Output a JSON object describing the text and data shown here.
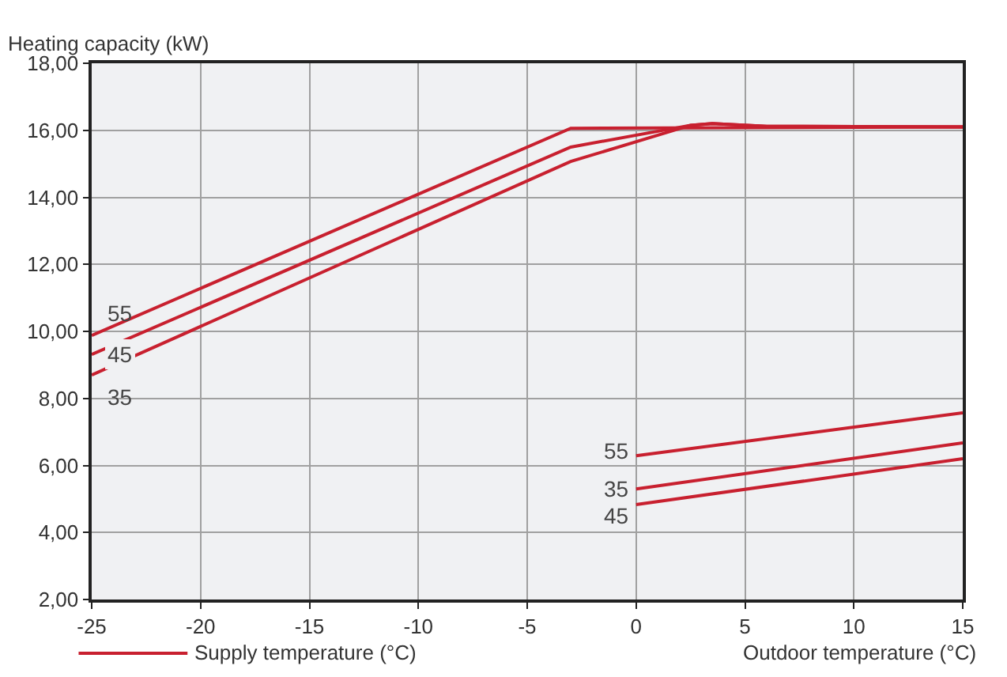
{
  "chart_data": {
    "type": "line",
    "ylabel": "Heating capacity (kW)",
    "xlabel": "Outdoor temperature (°C)",
    "legend_title": "Supply temperature (°C)",
    "xlim": [
      -25,
      15
    ],
    "xticks": [
      -25,
      -20,
      -15,
      -10,
      -5,
      0,
      5,
      10,
      15
    ],
    "ylim": [
      2,
      18
    ],
    "yticks": [
      {
        "value": 2,
        "label": "2,00"
      },
      {
        "value": 4,
        "label": "4,00"
      },
      {
        "value": 6,
        "label": "6,00"
      },
      {
        "value": 8,
        "label": "8,00"
      },
      {
        "value": 10,
        "label": "10,00"
      },
      {
        "value": 12,
        "label": "12,00"
      },
      {
        "value": 14,
        "label": "14,00"
      },
      {
        "value": 16,
        "label": "16,00"
      },
      {
        "value": 18,
        "label": "18,00"
      }
    ],
    "grid": true,
    "marker": "none",
    "line_style": "solid",
    "series": [
      {
        "name": "55",
        "color": "#c8202f",
        "x": [
          -25,
          -3,
          15
        ],
        "values": [
          9.88,
          16.06,
          16.1
        ]
      },
      {
        "name": "45",
        "color": "#c8202f",
        "x": [
          -25,
          -3,
          2.5,
          3.5,
          6,
          15
        ],
        "values": [
          9.31,
          15.5,
          16.15,
          16.2,
          16.12,
          16.1
        ]
      },
      {
        "name": "35",
        "color": "#c8202f",
        "x": [
          -25,
          -3,
          2.5,
          3.5,
          6,
          15
        ],
        "values": [
          8.7,
          15.07,
          16.15,
          16.2,
          16.12,
          16.1
        ]
      },
      {
        "name": "55",
        "color": "#c8202f",
        "x": [
          0,
          15
        ],
        "values": [
          6.29,
          7.57
        ]
      },
      {
        "name": "35",
        "color": "#c8202f",
        "x": [
          0,
          15
        ],
        "values": [
          5.3,
          6.67
        ]
      },
      {
        "name": "45",
        "color": "#c8202f",
        "x": [
          0,
          15
        ],
        "values": [
          4.83,
          6.2
        ]
      }
    ]
  }
}
